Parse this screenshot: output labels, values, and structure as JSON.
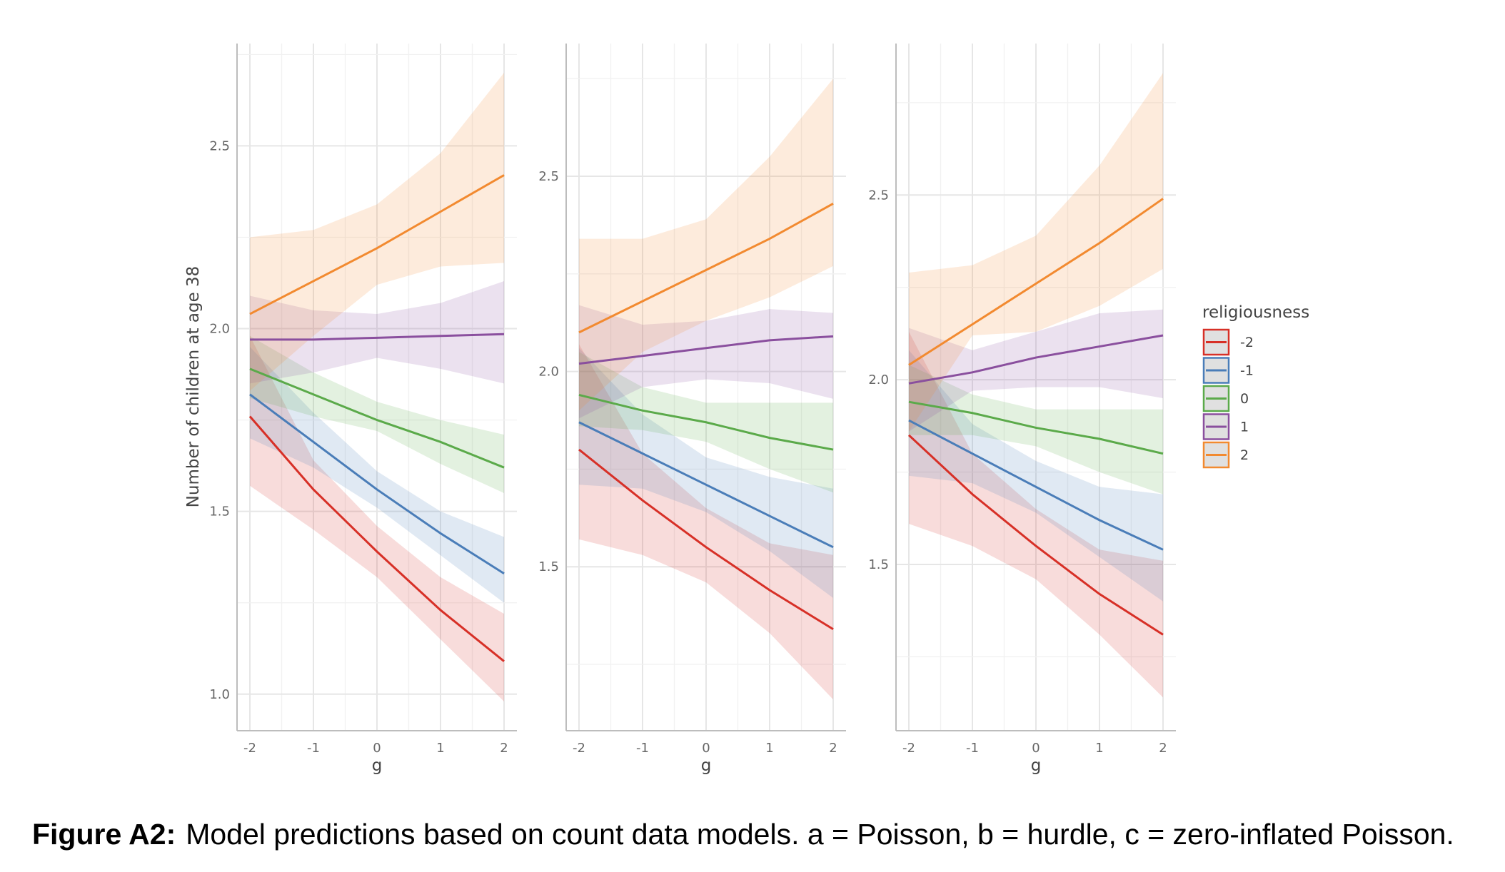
{
  "chart_data": {
    "type": "line",
    "caption_label": "Figure A2:",
    "caption_text": "Model predictions based on count data models. a = Poisson, b = hurdle, c = zero-inflated Poisson.",
    "ylabel": "Number of children at age 38",
    "xlabel": "g",
    "x": [
      -2,
      -1,
      0,
      1,
      2
    ],
    "legend": {
      "title": "religiousness",
      "placement": "right",
      "entries": [
        "-2",
        "-1",
        "0",
        "1",
        "2"
      ],
      "colors": [
        "#D73027",
        "#4A7DB8",
        "#5BAA4A",
        "#8A4F9E",
        "#F28A30"
      ]
    },
    "panels": [
      {
        "name": "a",
        "ylim": [
          0.9,
          2.78
        ],
        "yticks": [
          1.0,
          1.5,
          2.0,
          2.5
        ],
        "ytick_labels": [
          "1.0",
          "1.5",
          "2.0",
          "2.5"
        ],
        "series": [
          {
            "name": "-2",
            "values": [
              1.76,
              1.56,
              1.39,
              1.23,
              1.09
            ],
            "lower": [
              1.57,
              1.45,
              1.32,
              1.15,
              0.98
            ],
            "upper": [
              1.98,
              1.64,
              1.46,
              1.32,
              1.22
            ]
          },
          {
            "name": "-1",
            "values": [
              1.82,
              1.69,
              1.56,
              1.44,
              1.33
            ],
            "lower": [
              1.7,
              1.62,
              1.51,
              1.38,
              1.25
            ],
            "upper": [
              1.95,
              1.77,
              1.61,
              1.5,
              1.43
            ]
          },
          {
            "name": "0",
            "values": [
              1.89,
              1.82,
              1.75,
              1.69,
              1.62
            ],
            "lower": [
              1.81,
              1.76,
              1.72,
              1.63,
              1.55
            ],
            "upper": [
              1.98,
              1.88,
              1.8,
              1.75,
              1.71
            ]
          },
          {
            "name": "1",
            "values": [
              1.97,
              1.97,
              1.975,
              1.98,
              1.985
            ],
            "lower": [
              1.85,
              1.88,
              1.92,
              1.89,
              1.85
            ],
            "upper": [
              2.09,
              2.05,
              2.04,
              2.07,
              2.13
            ]
          },
          {
            "name": "2",
            "values": [
              2.04,
              2.13,
              2.22,
              2.32,
              2.42
            ],
            "lower": [
              1.83,
              1.98,
              2.12,
              2.17,
              2.18
            ],
            "upper": [
              2.25,
              2.27,
              2.34,
              2.48,
              2.7
            ]
          }
        ]
      },
      {
        "name": "b",
        "ylim": [
          1.08,
          2.84
        ],
        "yticks": [
          1.5,
          2.0,
          2.5
        ],
        "ytick_labels": [
          "1.5",
          "2.0",
          "2.5"
        ],
        "series": [
          {
            "name": "-2",
            "values": [
              1.8,
              1.67,
              1.55,
              1.44,
              1.34
            ],
            "lower": [
              1.57,
              1.53,
              1.46,
              1.33,
              1.16
            ],
            "upper": [
              2.07,
              1.79,
              1.65,
              1.56,
              1.53
            ]
          },
          {
            "name": "-1",
            "values": [
              1.87,
              1.79,
              1.71,
              1.63,
              1.55
            ],
            "lower": [
              1.71,
              1.7,
              1.64,
              1.54,
              1.42
            ],
            "upper": [
              2.06,
              1.89,
              1.78,
              1.73,
              1.7
            ]
          },
          {
            "name": "0",
            "values": [
              1.94,
              1.9,
              1.87,
              1.83,
              1.8
            ],
            "lower": [
              1.86,
              1.85,
              1.82,
              1.75,
              1.69
            ],
            "upper": [
              2.05,
              1.96,
              1.92,
              1.92,
              1.92
            ]
          },
          {
            "name": "1",
            "values": [
              2.02,
              2.04,
              2.06,
              2.08,
              2.09
            ],
            "lower": [
              1.88,
              1.96,
              1.98,
              1.97,
              1.93
            ],
            "upper": [
              2.17,
              2.12,
              2.13,
              2.16,
              2.15
            ]
          },
          {
            "name": "2",
            "values": [
              2.1,
              2.18,
              2.26,
              2.34,
              2.43
            ],
            "lower": [
              1.9,
              2.05,
              2.13,
              2.19,
              2.27
            ],
            "upper": [
              2.34,
              2.34,
              2.39,
              2.55,
              2.75
            ]
          }
        ]
      },
      {
        "name": "c",
        "ylim": [
          1.05,
          2.91
        ],
        "yticks": [
          1.5,
          2.0,
          2.5
        ],
        "ytick_labels": [
          "1.5",
          "2.0",
          "2.5"
        ],
        "series": [
          {
            "name": "-2",
            "values": [
              1.85,
              1.69,
              1.55,
              1.42,
              1.31
            ],
            "lower": [
              1.61,
              1.55,
              1.46,
              1.31,
              1.14
            ],
            "upper": [
              2.13,
              1.8,
              1.65,
              1.54,
              1.51
            ]
          },
          {
            "name": "-1",
            "values": [
              1.89,
              1.8,
              1.71,
              1.62,
              1.54
            ],
            "lower": [
              1.74,
              1.72,
              1.64,
              1.52,
              1.4
            ],
            "upper": [
              2.08,
              1.88,
              1.78,
              1.71,
              1.69
            ]
          },
          {
            "name": "0",
            "values": [
              1.94,
              1.91,
              1.87,
              1.84,
              1.8
            ],
            "lower": [
              1.85,
              1.85,
              1.82,
              1.75,
              1.69
            ],
            "upper": [
              2.04,
              1.96,
              1.92,
              1.92,
              1.92
            ]
          },
          {
            "name": "1",
            "values": [
              1.99,
              2.02,
              2.06,
              2.09,
              2.12
            ],
            "lower": [
              1.86,
              1.97,
              1.98,
              1.98,
              1.95
            ],
            "upper": [
              2.14,
              2.08,
              2.13,
              2.18,
              2.19
            ]
          },
          {
            "name": "2",
            "values": [
              2.04,
              2.15,
              2.26,
              2.37,
              2.49
            ],
            "lower": [
              1.86,
              2.12,
              2.13,
              2.2,
              2.3
            ],
            "upper": [
              2.29,
              2.31,
              2.39,
              2.58,
              2.83
            ]
          }
        ]
      }
    ]
  }
}
